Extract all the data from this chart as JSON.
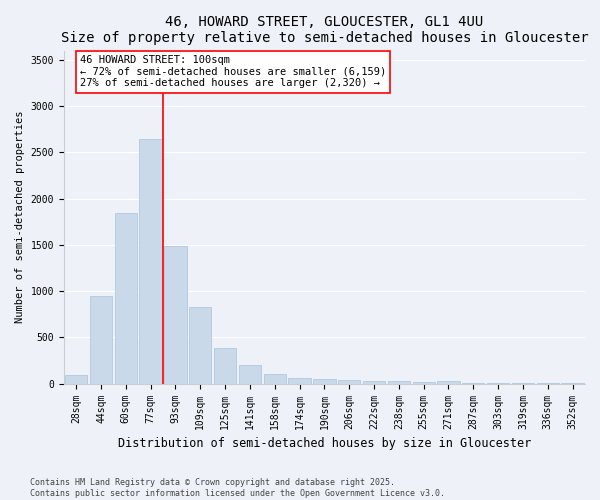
{
  "title": "46, HOWARD STREET, GLOUCESTER, GL1 4UU",
  "subtitle": "Size of property relative to semi-detached houses in Gloucester",
  "xlabel": "Distribution of semi-detached houses by size in Gloucester",
  "ylabel": "Number of semi-detached properties",
  "categories": [
    "28sqm",
    "44sqm",
    "60sqm",
    "77sqm",
    "93sqm",
    "109sqm",
    "125sqm",
    "141sqm",
    "158sqm",
    "174sqm",
    "190sqm",
    "206sqm",
    "222sqm",
    "238sqm",
    "255sqm",
    "271sqm",
    "287sqm",
    "303sqm",
    "319sqm",
    "336sqm",
    "352sqm"
  ],
  "values": [
    95,
    950,
    1840,
    2640,
    1490,
    830,
    390,
    200,
    110,
    65,
    50,
    35,
    25,
    30,
    20,
    30,
    10,
    10,
    10,
    5,
    5
  ],
  "bar_color": "#c9d9ea",
  "bar_edge_color": "#a8c4dc",
  "bar_edge_width": 0.5,
  "vline_color": "red",
  "vline_position": 4.5,
  "annotation_box_text": "46 HOWARD STREET: 100sqm\n← 72% of semi-detached houses are smaller (6,159)\n27% of semi-detached houses are larger (2,320) →",
  "ylim": [
    0,
    3600
  ],
  "yticks": [
    0,
    500,
    1000,
    1500,
    2000,
    2500,
    3000,
    3500
  ],
  "background_color": "#eef2f8",
  "plot_bg_color": "#eef2f8",
  "grid_color": "#ffffff",
  "footer_text": "Contains HM Land Registry data © Crown copyright and database right 2025.\nContains public sector information licensed under the Open Government Licence v3.0.",
  "title_fontsize": 10,
  "xlabel_fontsize": 8.5,
  "ylabel_fontsize": 7.5,
  "tick_fontsize": 7,
  "annotation_fontsize": 7.5,
  "footer_fontsize": 6
}
